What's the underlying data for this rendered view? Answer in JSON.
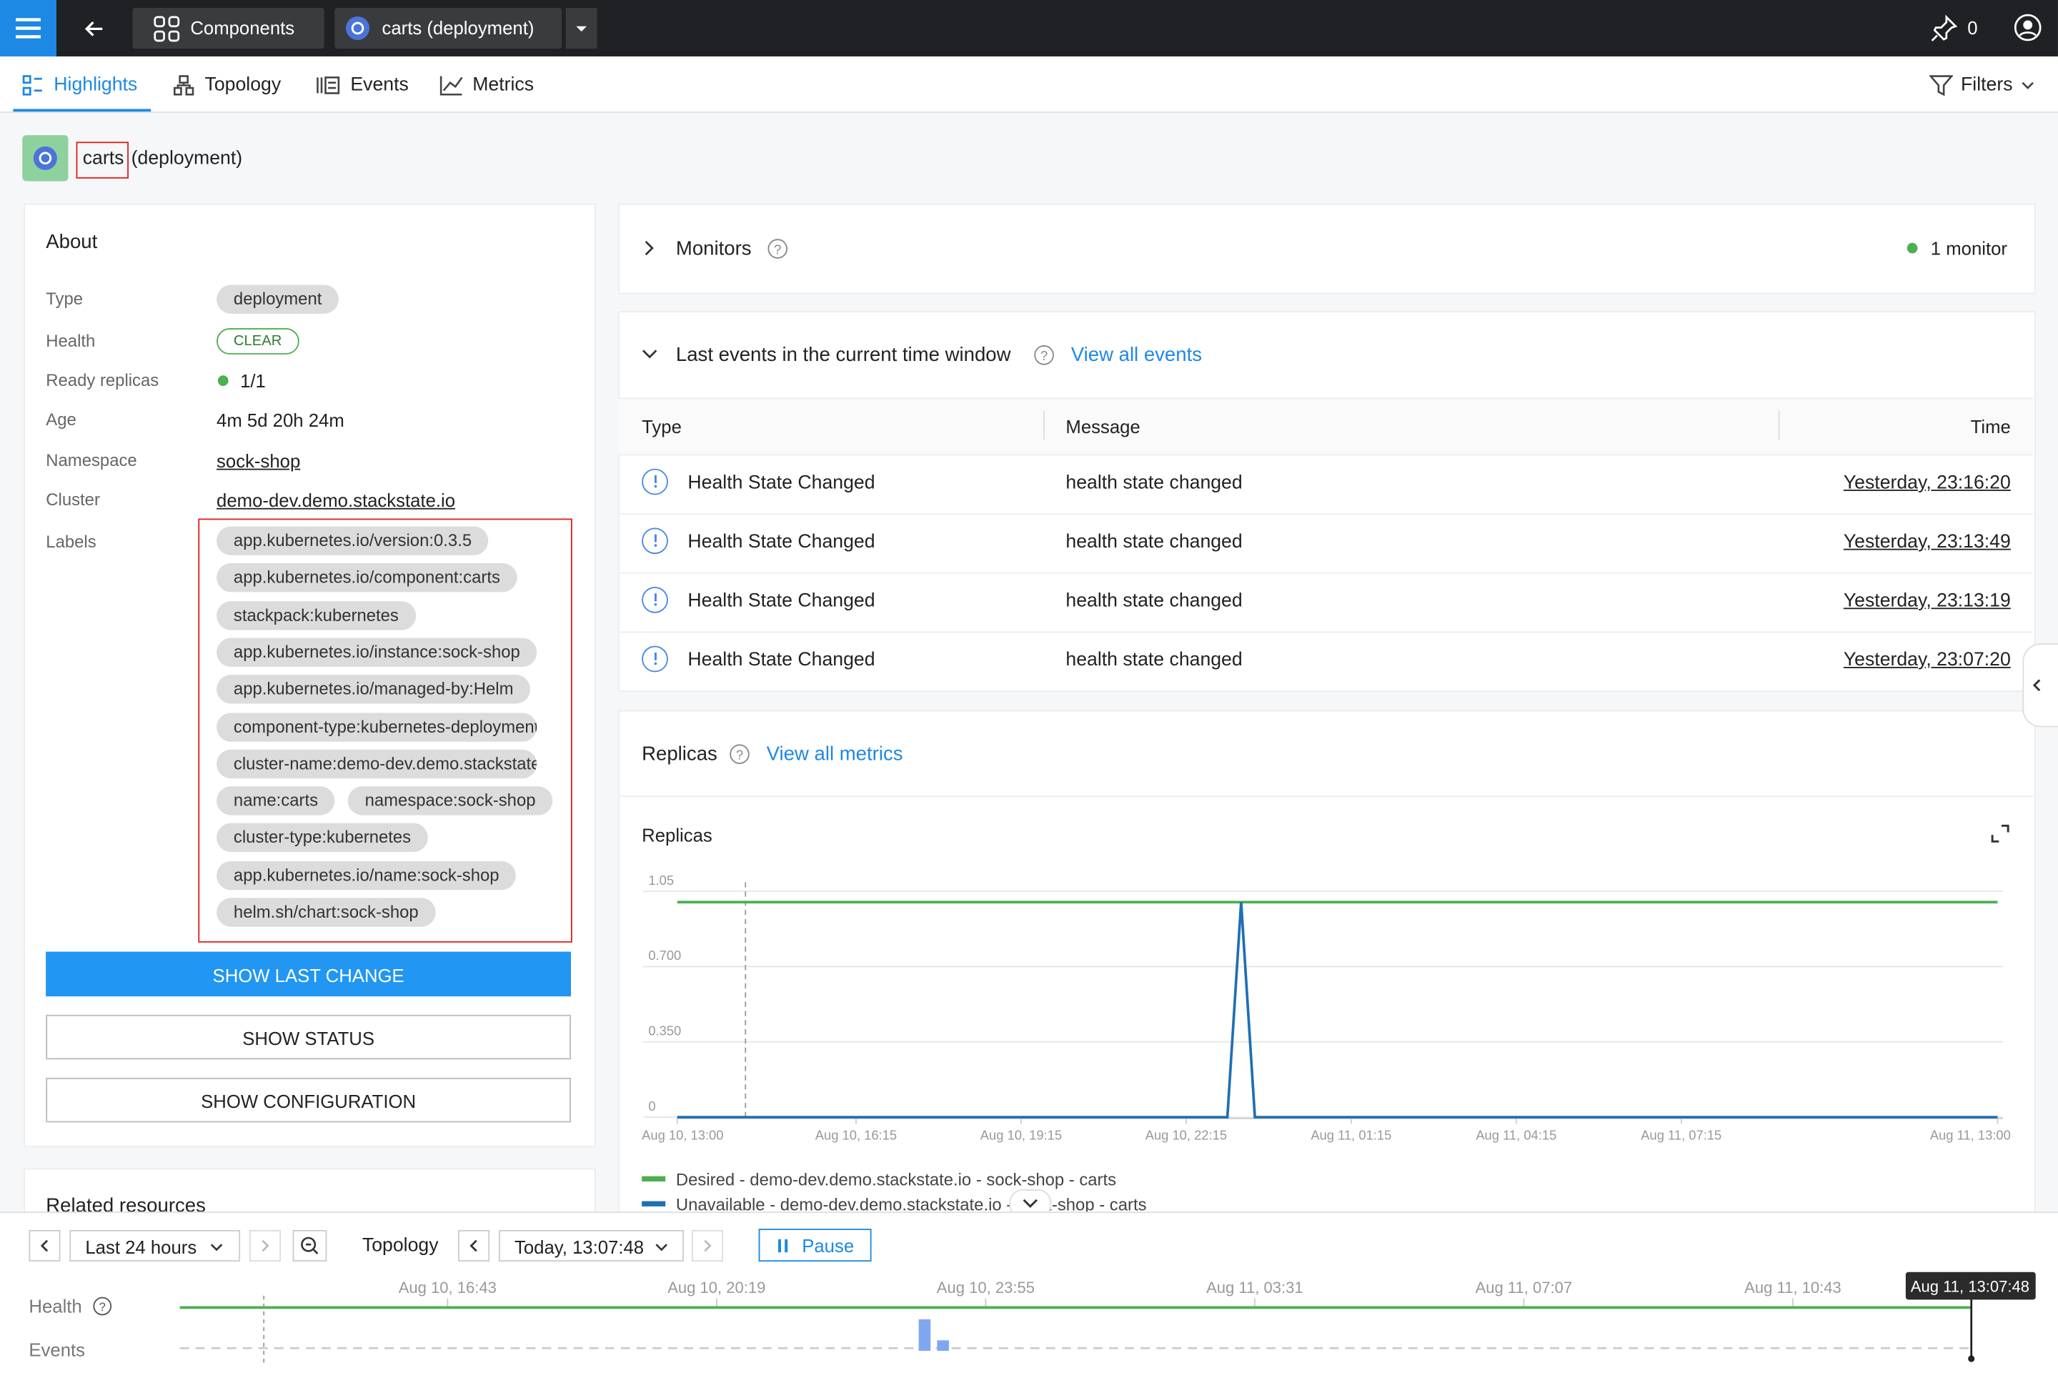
{
  "topbar": {
    "breadcrumbs": [
      "Components",
      "carts (deployment)"
    ],
    "pins": "0"
  },
  "tabs": [
    "Highlights",
    "Topology",
    "Events",
    "Metrics"
  ],
  "filters": "Filters",
  "component": {
    "name": "carts",
    "kind": "(deployment)"
  },
  "about": {
    "title": "About",
    "fields": [
      [
        "Type",
        "deployment"
      ],
      [
        "Health",
        "CLEAR"
      ],
      [
        "Ready replicas",
        "1/1"
      ],
      [
        "Age",
        "4m 5d 20h 24m"
      ],
      [
        "Namespace",
        "sock-shop"
      ],
      [
        "Cluster",
        "demo-dev.demo.stackstate.io"
      ]
    ],
    "labels_title": "Labels",
    "labels": [
      [
        "app.kubernetes.io/version:0.3.5"
      ],
      [
        "app.kubernetes.io/component:carts"
      ],
      [
        "stackpack:kubernetes"
      ],
      [
        "app.kubernetes.io/instance:sock-shop"
      ],
      [
        "app.kubernetes.io/managed-by:Helm"
      ],
      [
        "component-type:kubernetes-deployment"
      ],
      [
        "cluster-name:demo-dev.demo.stackstate.io"
      ],
      [
        "name:carts",
        "namespace:sock-shop"
      ],
      [
        "cluster-type:kubernetes"
      ],
      [
        "app.kubernetes.io/name:sock-shop"
      ],
      [
        "helm.sh/chart:sock-shop"
      ]
    ],
    "buttons": [
      "SHOW LAST CHANGE",
      "SHOW STATUS",
      "SHOW CONFIGURATION"
    ]
  },
  "related_title": "Related resources",
  "monitors": {
    "title": "Monitors",
    "count": "1 monitor"
  },
  "events": {
    "title": "Last events in the current time window",
    "link": "View all events",
    "columns": [
      "Type",
      "Message",
      "Time"
    ],
    "rows": [
      [
        "Health State Changed",
        "health state changed",
        "Yesterday, 23:16:20"
      ],
      [
        "Health State Changed",
        "health state changed",
        "Yesterday, 23:13:49"
      ],
      [
        "Health State Changed",
        "health state changed",
        "Yesterday, 23:13:19"
      ],
      [
        "Health State Changed",
        "health state changed",
        "Yesterday, 23:07:20"
      ]
    ]
  },
  "replicas": {
    "title": "Replicas",
    "link": "View all metrics",
    "chart": {
      "type": "line",
      "title": "Replicas",
      "xlim": [
        "Aug 10, 13:00",
        "Aug 11, 13:00"
      ],
      "xticks": [
        "Aug 10, 13:00",
        "Aug 10, 16:15",
        "Aug 10, 19:15",
        "Aug 10, 22:15",
        "Aug 11, 01:15",
        "Aug 11, 04:15",
        "Aug 11, 07:15",
        "Aug 11, 13:00"
      ],
      "ylim": [
        0,
        1.05
      ],
      "yticks": [
        0,
        {
          "value": 0.35,
          "label": "0.350"
        },
        {
          "value": 0.7,
          "label": "0.700"
        },
        1.05
      ],
      "grid": true,
      "series": [
        {
          "name": "Desired - demo-dev.demo.stackstate.io - sock-shop - carts",
          "color": "#4caf50",
          "x": [
            "Aug 10, 13:00",
            "Aug 11, 13:00"
          ],
          "values": [
            1,
            1
          ]
        },
        {
          "name": "Unavailable - demo-dev.demo.stackstate.io - sock-shop - carts",
          "color": "#1f6fb4",
          "x": [
            "Aug 10, 13:00",
            "Aug 10, 23:00",
            "Aug 10, 23:15",
            "Aug 10, 23:30",
            "Aug 11, 13:00"
          ],
          "values": [
            0,
            0,
            1,
            0,
            0
          ]
        }
      ]
    }
  },
  "timeline": {
    "range": "Last 24 hours",
    "mode": "Topology",
    "time": "Today, 13:07:48",
    "pause": "Pause",
    "ticks": [
      "Aug 10, 16:43",
      "Aug 10, 20:19",
      "Aug 10, 23:55",
      "Aug 11, 03:31",
      "Aug 11, 07:07",
      "Aug 11, 10:43"
    ],
    "current": "Aug 11, 13:07:48",
    "rows": [
      "Health",
      "Events"
    ]
  }
}
